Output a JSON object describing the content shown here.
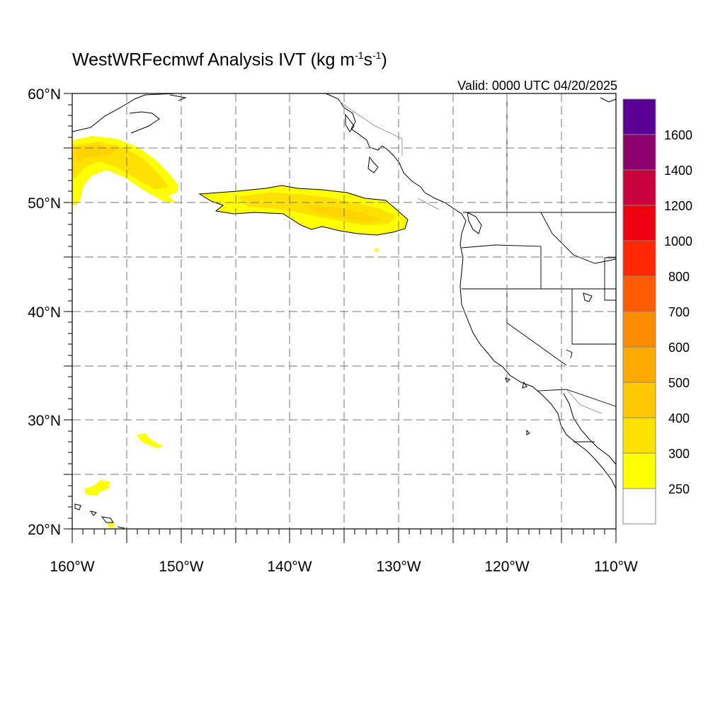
{
  "title": {
    "main": "WestWRFecmwf Analysis IVT (kg m",
    "sup1": "-1",
    "mid": "s",
    "sup2": "-1",
    "end": ")"
  },
  "valid_text": "Valid: 0000 UTC 04/20/2025",
  "lat_labels": [
    "60°N",
    "50°N",
    "40°N",
    "30°N",
    "20°N"
  ],
  "lon_labels": [
    "160°W",
    "150°W",
    "140°W",
    "130°W",
    "120°W",
    "110°W"
  ],
  "colorbar": {
    "labels": [
      "1600",
      "1400",
      "1200",
      "1000",
      "800",
      "700",
      "600",
      "500",
      "400",
      "300",
      "250"
    ],
    "colors": [
      "#ffffff",
      "#ffff00",
      "#ffe100",
      "#ffc800",
      "#ffaa00",
      "#ff8c00",
      "#ff5a00",
      "#ff2800",
      "#ee0011",
      "#c8003c",
      "#8c006e",
      "#5a0096"
    ]
  },
  "map_extent": {
    "lon_min": -160,
    "lon_max": -110,
    "lat_min": 20,
    "lat_max": 60
  }
}
